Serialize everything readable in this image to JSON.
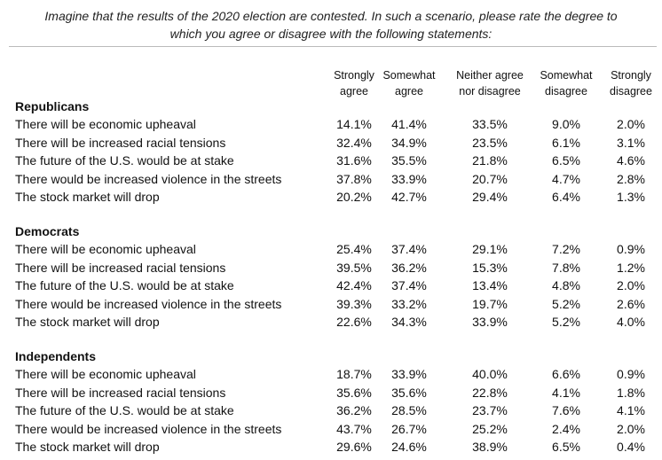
{
  "title": [
    "Imagine that the results of the 2020 election are contested. In such a scenario, please rate the degree to",
    "which you agree or disagree with the following statements:"
  ],
  "columns": [
    [
      "Strongly",
      "agree"
    ],
    [
      "Somewhat",
      "agree"
    ],
    [
      "Neither agree",
      "nor disagree"
    ],
    [
      "Somewhat",
      "disagree"
    ],
    [
      "Strongly",
      "disagree"
    ]
  ],
  "groups": [
    {
      "name": "Republicans",
      "rows": [
        [
          "There will be economic upheaval",
          "14.1%",
          "41.4%",
          "33.5%",
          "9.0%",
          "2.0%"
        ],
        [
          "There will be increased racial tensions",
          "32.4%",
          "34.9%",
          "23.5%",
          "6.1%",
          "3.1%"
        ],
        [
          "The future of the U.S. would be at stake",
          "31.6%",
          "35.5%",
          "21.8%",
          "6.5%",
          "4.6%"
        ],
        [
          "There would be increased violence in the streets",
          "37.8%",
          "33.9%",
          "20.7%",
          "4.7%",
          "2.8%"
        ],
        [
          "The stock market will drop",
          "20.2%",
          "42.7%",
          "29.4%",
          "6.4%",
          "1.3%"
        ]
      ]
    },
    {
      "name": "Democrats",
      "rows": [
        [
          "There will be economic upheaval",
          "25.4%",
          "37.4%",
          "29.1%",
          "7.2%",
          "0.9%"
        ],
        [
          "There will be increased racial tensions",
          "39.5%",
          "36.2%",
          "15.3%",
          "7.8%",
          "1.2%"
        ],
        [
          "The future of the U.S. would be at stake",
          "42.4%",
          "37.4%",
          "13.4%",
          "4.8%",
          "2.0%"
        ],
        [
          "There would be increased violence in the streets",
          "39.3%",
          "33.2%",
          "19.7%",
          "5.2%",
          "2.6%"
        ],
        [
          "The stock market will drop",
          "22.6%",
          "34.3%",
          "33.9%",
          "5.2%",
          "4.0%"
        ]
      ]
    },
    {
      "name": "Independents",
      "rows": [
        [
          "There will be economic upheaval",
          "18.7%",
          "33.9%",
          "40.0%",
          "6.6%",
          "0.9%"
        ],
        [
          "There will be increased racial tensions",
          "35.6%",
          "35.6%",
          "22.8%",
          "4.1%",
          "1.8%"
        ],
        [
          "The future of the U.S. would be at stake",
          "36.2%",
          "28.5%",
          "23.7%",
          "7.6%",
          "4.1%"
        ],
        [
          "There would be increased violence in the streets",
          "43.7%",
          "26.7%",
          "25.2%",
          "2.4%",
          "2.0%"
        ],
        [
          "The stock market will drop",
          "29.6%",
          "24.6%",
          "38.9%",
          "6.5%",
          "0.4%"
        ]
      ]
    }
  ]
}
